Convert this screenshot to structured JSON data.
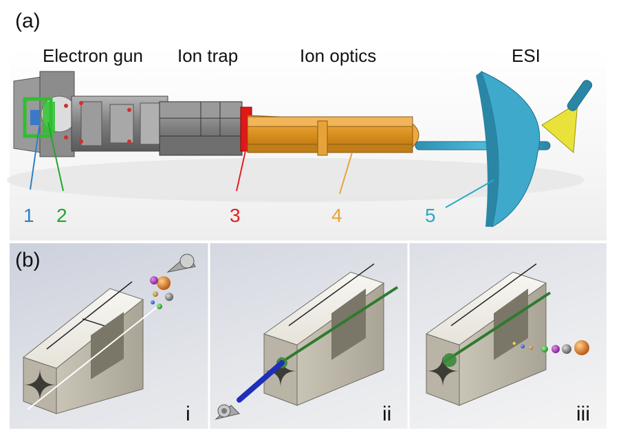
{
  "panel_a": {
    "label": "(a)",
    "sections": {
      "electron_gun": "Electron gun",
      "ion_trap": "Ion trap",
      "ion_optics": "Ion optics",
      "esi": "ESI"
    },
    "callouts": [
      {
        "id": "1",
        "color": "#2f7fc4"
      },
      {
        "id": "2",
        "color": "#23a52e"
      },
      {
        "id": "3",
        "color": "#e02020"
      },
      {
        "id": "4",
        "color": "#e8a33a"
      },
      {
        "id": "5",
        "color": "#2aa8c4"
      }
    ]
  },
  "panel_b": {
    "label": "(b)",
    "subpanels": [
      "i",
      "ii",
      "iii"
    ]
  },
  "colors": {
    "steel": "#8a8a8a",
    "electrode": "#d9d4c7",
    "orange_optics": "#e09a2a",
    "esi_cyan": "#3aa6c8",
    "esi_yellow": "#e8e23a",
    "green_electrode": "#2fbf2f",
    "red_plate": "#e01818",
    "beam_blue": "#1f2fb8",
    "ion_green": "#2f7a2f"
  }
}
